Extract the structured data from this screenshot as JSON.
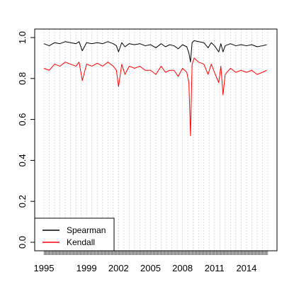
{
  "chart_data": {
    "type": "line",
    "title": "",
    "xlabel": "",
    "ylabel": "",
    "xlim": [
      1995,
      2016
    ],
    "ylim": [
      0.0,
      1.0
    ],
    "x_ticks": [
      "1995",
      "1999",
      "2002",
      "2005",
      "2008",
      "2011",
      "2014"
    ],
    "x_tick_values": [
      1995,
      1999,
      2002,
      2005,
      2008,
      2011,
      2014
    ],
    "y_ticks": [
      "0.0",
      "0.2",
      "0.4",
      "0.6",
      "0.8",
      "1.0"
    ],
    "y_tick_values": [
      0.0,
      0.2,
      0.4,
      0.6,
      0.8,
      1.0
    ],
    "grid": "vertical dotted",
    "legend_position": "bottom-left",
    "series": [
      {
        "name": "Spearman",
        "color": "#000000",
        "x": [
          1995.0,
          1995.5,
          1996.0,
          1996.5,
          1997.0,
          1997.5,
          1998.0,
          1998.3,
          1998.6,
          1999.0,
          1999.5,
          2000.0,
          2000.5,
          2001.0,
          2001.5,
          2001.8,
          2002.0,
          2002.3,
          2002.6,
          2003.0,
          2003.5,
          2004.0,
          2004.5,
          2005.0,
          2005.5,
          2006.0,
          2006.4,
          2006.8,
          2007.2,
          2007.6,
          2008.0,
          2008.4,
          2008.6,
          2008.75,
          2008.9,
          2009.1,
          2009.5,
          2010.0,
          2010.4,
          2010.7,
          2011.0,
          2011.4,
          2011.6,
          2011.8,
          2012.0,
          2012.5,
          2013.0,
          2013.5,
          2014.0,
          2014.5,
          2015.0,
          2015.5,
          2015.9
        ],
        "y": [
          0.97,
          0.96,
          0.975,
          0.97,
          0.98,
          0.975,
          0.97,
          0.98,
          0.935,
          0.975,
          0.97,
          0.975,
          0.97,
          0.98,
          0.97,
          0.96,
          0.93,
          0.975,
          0.955,
          0.97,
          0.965,
          0.97,
          0.96,
          0.965,
          0.95,
          0.97,
          0.955,
          0.965,
          0.96,
          0.945,
          0.965,
          0.955,
          0.925,
          0.88,
          0.975,
          0.985,
          0.98,
          0.975,
          0.95,
          0.975,
          0.96,
          0.93,
          0.97,
          0.93,
          0.96,
          0.97,
          0.96,
          0.965,
          0.96,
          0.965,
          0.955,
          0.96,
          0.965
        ]
      },
      {
        "name": "Kendall",
        "color": "#ff0000",
        "x": [
          1995.0,
          1995.5,
          1996.0,
          1996.5,
          1997.0,
          1997.5,
          1998.0,
          1998.3,
          1998.6,
          1999.0,
          1999.5,
          2000.0,
          2000.5,
          2001.0,
          2001.5,
          2001.8,
          2002.0,
          2002.3,
          2002.6,
          2003.0,
          2003.5,
          2004.0,
          2004.5,
          2005.0,
          2005.5,
          2006.0,
          2006.4,
          2006.8,
          2007.2,
          2007.6,
          2008.0,
          2008.4,
          2008.6,
          2008.75,
          2008.9,
          2009.1,
          2009.5,
          2010.0,
          2010.4,
          2010.7,
          2011.0,
          2011.4,
          2011.6,
          2011.8,
          2012.0,
          2012.5,
          2013.0,
          2013.5,
          2014.0,
          2014.5,
          2015.0,
          2015.5,
          2015.9
        ],
        "y": [
          0.85,
          0.84,
          0.87,
          0.86,
          0.88,
          0.87,
          0.86,
          0.88,
          0.79,
          0.87,
          0.86,
          0.875,
          0.86,
          0.88,
          0.86,
          0.84,
          0.76,
          0.87,
          0.82,
          0.86,
          0.85,
          0.86,
          0.84,
          0.84,
          0.82,
          0.86,
          0.83,
          0.84,
          0.84,
          0.81,
          0.85,
          0.83,
          0.78,
          0.52,
          0.87,
          0.9,
          0.88,
          0.87,
          0.82,
          0.87,
          0.83,
          0.78,
          0.86,
          0.72,
          0.82,
          0.85,
          0.83,
          0.84,
          0.83,
          0.84,
          0.82,
          0.83,
          0.84
        ]
      }
    ]
  }
}
